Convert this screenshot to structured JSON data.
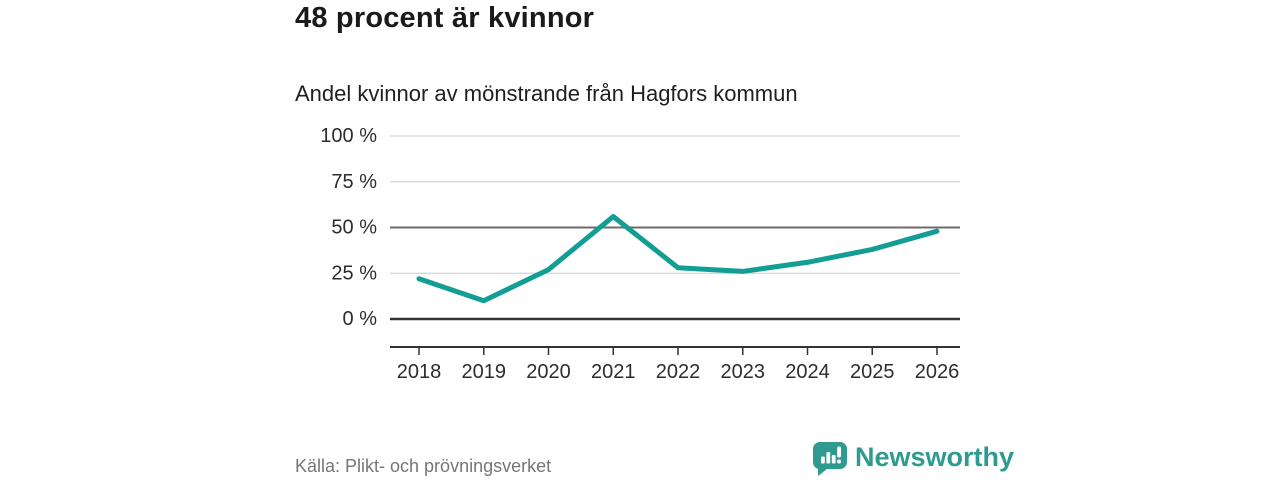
{
  "header": {
    "title": "48 procent är kvinnor",
    "subtitle": "Andel kvinnor av mönstrande från Hagfors kommun"
  },
  "chart_data": {
    "type": "line",
    "categories": [
      "2018",
      "2019",
      "2020",
      "2021",
      "2022",
      "2023",
      "2024",
      "2025",
      "2026"
    ],
    "values": [
      22,
      10,
      27,
      56,
      28,
      26,
      31,
      38,
      48
    ],
    "unit": "%",
    "title": "48 procent är kvinnor",
    "subtitle": "Andel kvinnor av mönstrande från Hagfors kommun",
    "xlabel": "",
    "ylabel": "",
    "ylim": [
      0,
      100
    ],
    "yticks": [
      0,
      25,
      50,
      75,
      100
    ],
    "ytick_labels": [
      "0 %",
      "25 %",
      "50 %",
      "75 %",
      "100 %"
    ],
    "grid": true,
    "emphasized_gridline": 50,
    "legend": "none",
    "colors": {
      "line": "#129e94",
      "gridline": "#cbcbcb",
      "emphasized_gridline": "#6b6b6b",
      "zero_line": "#333333",
      "axis": "#333333",
      "tick_label": "#2d2d2d"
    }
  },
  "footer": {
    "source": "Källa: Plikt- och prövningsverket",
    "brand": {
      "name": "Newsworthy",
      "color": "#2e9a90",
      "icon": "newsworthy-speech-bubble-chart-icon"
    }
  }
}
